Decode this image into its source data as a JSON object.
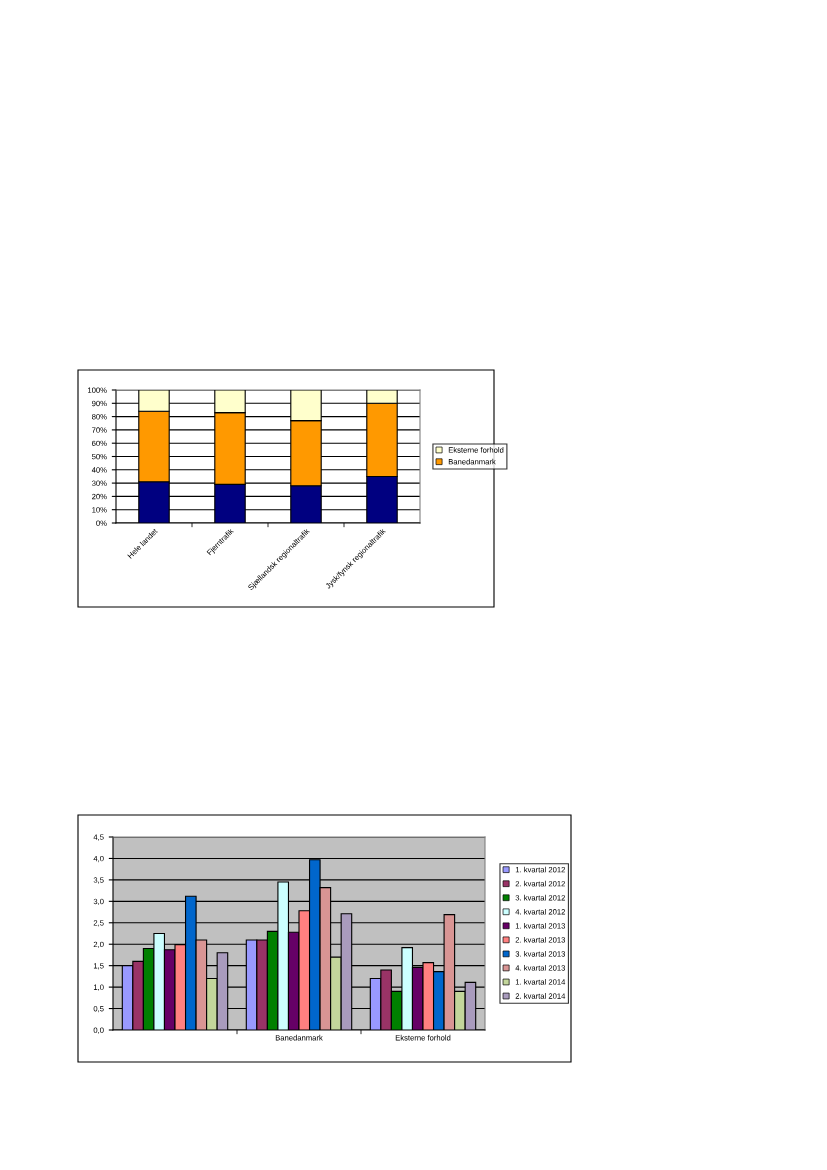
{
  "chart_data": [
    {
      "type": "bar",
      "stacked": true,
      "categories": [
        "Hele landet",
        "Fjerntrafik",
        "Sjællandsk regionaltrafik",
        "Jysk/fynsk regionaltrafik"
      ],
      "series": [
        {
          "color": "#000080",
          "values": [
            31,
            29,
            28,
            35
          ]
        },
        {
          "name": "Banedanmark",
          "color": "#ff9900",
          "values": [
            53,
            54,
            49,
            55
          ]
        },
        {
          "name": "Eksterne forhold",
          "color": "#ffffcc",
          "values": [
            16,
            17,
            23,
            10
          ]
        }
      ],
      "ylim": [
        0,
        100
      ],
      "yticks": [
        {
          "value": 0,
          "label": "0%"
        },
        {
          "value": 10,
          "label": "10%"
        },
        {
          "value": 20,
          "label": "20%"
        },
        {
          "value": 30,
          "label": "30%"
        },
        {
          "value": 40,
          "label": "40%"
        },
        {
          "value": 50,
          "label": "50%"
        },
        {
          "value": 60,
          "label": "60%"
        },
        {
          "value": 70,
          "label": "70%"
        },
        {
          "value": 80,
          "label": "80%"
        },
        {
          "value": 90,
          "label": "90%"
        },
        {
          "value": 100,
          "label": "100%"
        }
      ],
      "grid": "y",
      "legend": "right"
    },
    {
      "type": "bar",
      "categories": [
        null,
        "Banedanmark",
        "Eksterne forhold"
      ],
      "series": [
        {
          "name": "1. kvartal 2012",
          "color": "#9999ff",
          "values": [
            1.5,
            2.1,
            1.2
          ]
        },
        {
          "name": "2. kvartal 2012",
          "color": "#993366",
          "values": [
            1.6,
            2.1,
            1.4
          ]
        },
        {
          "name": "3. kvartal 2012",
          "color": "#008000",
          "values": [
            1.9,
            2.3,
            0.9
          ]
        },
        {
          "name": "4. kvartal 2012",
          "color": "#ccffff",
          "values": [
            2.25,
            3.45,
            1.92
          ]
        },
        {
          "name": "1. kvartal 2013",
          "color": "#660066",
          "values": [
            1.87,
            2.28,
            1.46
          ]
        },
        {
          "name": "2. kvartal 2013",
          "color": "#ff8080",
          "values": [
            1.99,
            2.78,
            1.57
          ]
        },
        {
          "name": "3. kvartal 2013",
          "color": "#0066cc",
          "values": [
            3.12,
            3.97,
            1.36
          ]
        },
        {
          "name": "4. kvartal 2013",
          "color": "#d99594",
          "values": [
            2.1,
            3.32,
            2.69
          ]
        },
        {
          "name": "1. kvartal 2014",
          "color": "#c3d69b",
          "values": [
            1.2,
            1.7,
            0.9
          ]
        },
        {
          "name": "2. kvartal 2014",
          "color": "#a99bbd",
          "values": [
            1.8,
            2.71,
            1.11
          ]
        }
      ],
      "ylim": [
        0,
        4.5
      ],
      "yticks": [
        {
          "value": 0,
          "label": "0,0"
        },
        {
          "value": 0.5,
          "label": "0,5"
        },
        {
          "value": 1,
          "label": "1,0"
        },
        {
          "value": 1.5,
          "label": "1,5"
        },
        {
          "value": 2,
          "label": "2,0"
        },
        {
          "value": 2.5,
          "label": "2,5"
        },
        {
          "value": 3,
          "label": "3,0"
        },
        {
          "value": 3.5,
          "label": "3,5"
        },
        {
          "value": 4,
          "label": "4,0"
        },
        {
          "value": 4.5,
          "label": "4,5"
        }
      ],
      "grid": "y",
      "legend": "right"
    }
  ]
}
